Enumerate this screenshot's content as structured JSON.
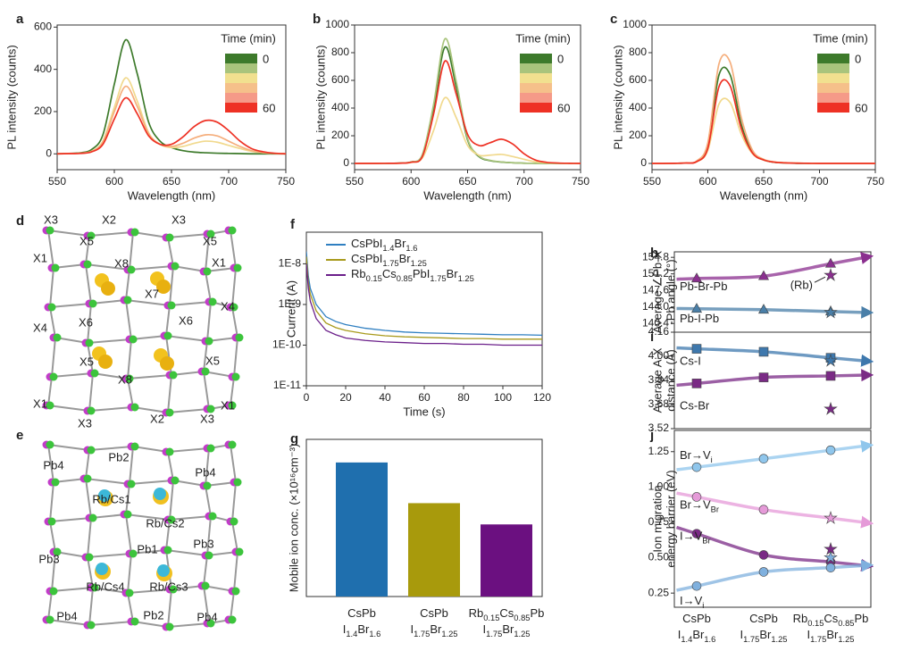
{
  "chart_data": [
    {
      "type": "line",
      "panel_label": "a",
      "xlabel": "Wavelength (nm)",
      "ylabel": "PL intensity (counts)",
      "xlim": [
        550,
        750
      ],
      "xticks": [
        550,
        600,
        650,
        700,
        750
      ],
      "ylim": [
        -75,
        610
      ],
      "yticks": [
        0,
        200,
        400,
        600
      ],
      "colorbar": {
        "title": "Time (min)",
        "colors": [
          "#3d7a2b",
          "#a9c47c",
          "#f1e08f",
          "#f5c08a",
          "#f59a88",
          "#ee3124"
        ],
        "labels": [
          "0",
          "60"
        ]
      },
      "x": [
        550,
        560,
        570,
        580,
        590,
        600,
        610,
        620,
        630,
        640,
        650,
        660,
        670,
        680,
        690,
        700,
        710,
        720,
        730,
        740,
        750
      ],
      "series": [
        {
          "color": "#3d7a2b",
          "values": [
            0,
            2,
            5,
            20,
            90,
            330,
            540,
            380,
            150,
            60,
            30,
            15,
            8,
            5,
            3,
            2,
            1,
            0,
            0,
            0,
            0
          ]
        },
        {
          "color": "#f1d98d",
          "values": [
            0,
            1,
            3,
            12,
            60,
            220,
            360,
            250,
            100,
            45,
            30,
            35,
            50,
            60,
            55,
            40,
            25,
            12,
            5,
            2,
            0
          ]
        },
        {
          "color": "#f5ae7c",
          "values": [
            0,
            1,
            3,
            11,
            55,
            200,
            320,
            225,
            95,
            45,
            35,
            50,
            75,
            90,
            85,
            60,
            35,
            15,
            6,
            2,
            0
          ]
        },
        {
          "color": "#ee3124",
          "values": [
            0,
            1,
            2,
            9,
            45,
            165,
            265,
            190,
            85,
            45,
            45,
            80,
            130,
            158,
            150,
            110,
            60,
            25,
            10,
            3,
            0
          ]
        }
      ]
    },
    {
      "type": "line",
      "panel_label": "b",
      "xlabel": "Wavelength (nm)",
      "ylabel": "PL intensity (counts)",
      "xlim": [
        550,
        750
      ],
      "xticks": [
        550,
        600,
        650,
        700,
        750
      ],
      "ylim": [
        -45,
        1000
      ],
      "yticks": [
        0,
        200,
        400,
        600,
        800,
        1000
      ],
      "colorbar": {
        "title": "Time (min)",
        "colors": [
          "#3d7a2b",
          "#a9c47c",
          "#f1e08f",
          "#f5c08a",
          "#f59a88",
          "#ee3124"
        ],
        "labels": [
          "0",
          "60"
        ]
      },
      "x": [
        550,
        560,
        570,
        580,
        590,
        600,
        610,
        620,
        630,
        640,
        650,
        660,
        670,
        680,
        690,
        700,
        710,
        720,
        730,
        740,
        750
      ],
      "series": [
        {
          "color": "#3d7a2b",
          "values": [
            0,
            0,
            0,
            1,
            3,
            10,
            60,
            400,
            840,
            550,
            170,
            50,
            20,
            10,
            5,
            2,
            1,
            0,
            0,
            0,
            0
          ]
        },
        {
          "color": "#a9c47c",
          "values": [
            0,
            0,
            0,
            1,
            3,
            11,
            65,
            430,
            900,
            590,
            180,
            55,
            22,
            11,
            5,
            2,
            1,
            0,
            0,
            0,
            0
          ]
        },
        {
          "color": "#f1d98d",
          "values": [
            0,
            0,
            0,
            1,
            2,
            7,
            40,
            240,
            475,
            330,
            130,
            60,
            60,
            65,
            50,
            30,
            12,
            5,
            2,
            0,
            0
          ]
        },
        {
          "color": "#ee3124",
          "values": [
            0,
            0,
            0,
            1,
            2,
            9,
            50,
            360,
            740,
            500,
            210,
            130,
            150,
            175,
            140,
            70,
            25,
            8,
            3,
            1,
            0
          ]
        }
      ]
    },
    {
      "type": "line",
      "panel_label": "c",
      "xlabel": "Wavelength (nm)",
      "ylabel": "PL intensity (counts)",
      "xlim": [
        550,
        750
      ],
      "xticks": [
        550,
        600,
        650,
        700,
        750
      ],
      "ylim": [
        -45,
        1000
      ],
      "yticks": [
        0,
        200,
        400,
        600,
        800,
        1000
      ],
      "colorbar": {
        "title": "Time (min)",
        "colors": [
          "#3d7a2b",
          "#a9c47c",
          "#f1e08f",
          "#f5c08a",
          "#f59a88",
          "#ee3124"
        ],
        "labels": [
          "0",
          "60"
        ]
      },
      "x": [
        550,
        560,
        570,
        580,
        590,
        600,
        610,
        620,
        630,
        640,
        650,
        660,
        670,
        680,
        690,
        700,
        710,
        720,
        730,
        740,
        750
      ],
      "series": [
        {
          "color": "#3d7a2b",
          "values": [
            0,
            0,
            1,
            3,
            15,
            130,
            640,
            640,
            280,
            80,
            25,
            8,
            3,
            1,
            1,
            0,
            0,
            0,
            0,
            0,
            0
          ]
        },
        {
          "color": "#f5ae7c",
          "values": [
            0,
            0,
            1,
            4,
            18,
            150,
            720,
            730,
            330,
            95,
            30,
            10,
            4,
            2,
            1,
            0,
            0,
            0,
            0,
            0,
            0
          ]
        },
        {
          "color": "#f1d98d",
          "values": [
            0,
            0,
            1,
            3,
            12,
            95,
            430,
            440,
            210,
            70,
            25,
            10,
            5,
            3,
            1,
            0,
            0,
            0,
            0,
            0,
            0
          ]
        },
        {
          "color": "#ee3124",
          "values": [
            0,
            0,
            1,
            3,
            13,
            110,
            555,
            560,
            250,
            75,
            25,
            9,
            4,
            2,
            1,
            0,
            0,
            0,
            0,
            0,
            0
          ]
        }
      ]
    },
    {
      "type": "line",
      "panel_label": "f",
      "xlabel": "Time (s)",
      "ylabel": "Current (A)",
      "log_y": true,
      "xlim": [
        0,
        120
      ],
      "xticks": [
        0,
        20,
        40,
        60,
        80,
        100,
        120
      ],
      "ylim": [
        1e-11,
        6e-08
      ],
      "yticks": [
        {
          "value": 1e-08,
          "label": "1E-8"
        },
        {
          "value": 1e-09,
          "label": "1E-9"
        },
        {
          "value": 1e-10,
          "label": "1E-10"
        },
        {
          "value": 1e-11,
          "label": "1E-11"
        }
      ],
      "x": [
        0,
        1,
        2,
        5,
        10,
        15,
        20,
        30,
        40,
        50,
        60,
        70,
        80,
        90,
        100,
        110,
        120
      ],
      "series": [
        {
          "name": "CsPbI1.4Br1.6",
          "color": "#2f7fc1",
          "values": [
            2e-08,
            5e-09,
            2.5e-09,
            1e-09,
            5e-10,
            3.8e-10,
            3.2e-10,
            2.6e-10,
            2.3e-10,
            2.1e-10,
            2e-10,
            1.95e-10,
            1.9e-10,
            1.85e-10,
            1.8e-10,
            1.8e-10,
            1.75e-10
          ]
        },
        {
          "name": "CsPbI1.75Br1.25",
          "color": "#a89a1c",
          "values": [
            1.5e-08,
            3.5e-09,
            1.8e-09,
            7e-10,
            3.5e-10,
            2.7e-10,
            2.3e-10,
            1.9e-10,
            1.7e-10,
            1.6e-10,
            1.55e-10,
            1.5e-10,
            1.45e-10,
            1.45e-10,
            1.4e-10,
            1.4e-10,
            1.4e-10
          ]
        },
        {
          "name": "Rb0.15Cs0.85PbI1.75Br1.25",
          "color": "#6b1f8a",
          "values": [
            1e-08,
            2.5e-09,
            1.2e-09,
            4.5e-10,
            2.3e-10,
            1.8e-10,
            1.5e-10,
            1.3e-10,
            1.2e-10,
            1.15e-10,
            1.1e-10,
            1.1e-10,
            1.05e-10,
            1.05e-10,
            1e-10,
            1e-10,
            1e-10
          ]
        }
      ]
    },
    {
      "type": "bar",
      "panel_label": "g",
      "ylabel": "Mobile ion conc. (×10¹⁶cm⁻³)",
      "ylim": [
        0,
        17
      ],
      "categories": [
        [
          "CsPb",
          "I1.4Br1.6"
        ],
        [
          "CsPb",
          "I1.75Br1.25"
        ],
        [
          "Rb0.15Cs0.85Pb",
          "I1.75Br1.25"
        ]
      ],
      "values": [
        14.5,
        10.1,
        7.8
      ],
      "colors": [
        "#1f6fae",
        "#a89a0c",
        "#6b1080"
      ]
    },
    {
      "type": "scatter",
      "panel_label": "h",
      "ylabel": [
        "Average ∠Pb-X",
        "-Pb angle (°)"
      ],
      "ylim": [
        138.5,
        156
      ],
      "yticks": [
        140.4,
        {
          "value": 144,
          "label": "144.0"
        },
        147.6,
        151.2,
        154.8
      ],
      "annotation": "(Rb)",
      "series": [
        {
          "name": "Pb-Br-Pb",
          "color": "#8b2f8f",
          "marker": "triangle",
          "values": [
            150.2,
            150.7,
            153.4
          ],
          "stars": [
            null,
            null,
            150.9
          ]
        },
        {
          "name": "Pb-I-Pb",
          "color": "#4a7fa8",
          "marker": "triangle",
          "values": [
            143.6,
            143.4,
            143.0
          ],
          "stars": [
            null,
            null,
            142.8
          ]
        }
      ]
    },
    {
      "type": "scatter",
      "panel_label": "i",
      "ylabel": [
        "Average A-X",
        "distance (Å)"
      ],
      "ylim": [
        3.52,
        4.16
      ],
      "yticks": [
        3.52,
        3.68,
        3.84,
        {
          "value": 4,
          "label": "4.00"
        },
        4.16
      ],
      "series": [
        {
          "name": "Cs-I",
          "color": "#3e78ad",
          "marker": "square",
          "values": [
            4.05,
            4.03,
            3.99
          ],
          "stars": [
            null,
            null,
            3.97
          ]
        },
        {
          "name": "Cs-Br",
          "color": "#7a2a85",
          "marker": "square",
          "values": [
            3.82,
            3.86,
            3.87
          ],
          "stars": [
            null,
            null,
            3.65
          ]
        }
      ]
    },
    {
      "type": "scatter",
      "panel_label": "j",
      "ylabel": [
        "Ion migration",
        "energy barrier (eV)"
      ],
      "ylim": [
        0.15,
        1.4
      ],
      "yticks": [
        0.25,
        {
          "value": 0.5,
          "label": "0.50"
        },
        0.75,
        {
          "value": 1,
          "label": "1.00"
        },
        1.25
      ],
      "categories": [
        [
          "CsPb",
          "I1.4Br1.6"
        ],
        [
          "CsPb",
          "I1.75Br1.25"
        ],
        [
          "Rb0.15Cs0.85Pb",
          "I1.75Br1.25"
        ]
      ],
      "series": [
        {
          "name": "Br→Vi",
          "color": "#8fc6ec",
          "marker": "circle",
          "values": [
            1.14,
            1.2,
            1.26
          ],
          "stars": [
            null,
            null,
            null
          ]
        },
        {
          "name": "Br→VBr",
          "color": "#e59ad8",
          "marker": "circle",
          "values": [
            0.93,
            0.84,
            null
          ],
          "stars": [
            null,
            null,
            0.78
          ]
        },
        {
          "name": "I→VBr",
          "color": "#7a2a85",
          "marker": "circle",
          "values": [
            0.67,
            0.52,
            0.47
          ],
          "stars": [
            null,
            null,
            0.56
          ]
        },
        {
          "name": "I→Vi",
          "color": "#7fb0de",
          "marker": "circle",
          "values": [
            0.3,
            0.4,
            0.43
          ],
          "stars": [
            null,
            null,
            0.5
          ]
        }
      ]
    }
  ],
  "structures": [
    {
      "panel_label": "d",
      "labels": [
        "X3",
        "X2",
        "X3",
        "X5",
        "X5",
        "X1",
        "X1",
        "X8",
        "X7",
        "X4",
        "X6",
        "X4",
        "X6",
        "X5",
        "X5",
        "X8",
        "X1",
        "X1",
        "X3",
        "X2",
        "X3"
      ]
    },
    {
      "panel_label": "e",
      "labels": [
        "Pb4",
        "Pb2",
        "Pb4",
        "Rb/Cs1",
        "Rb/Cs2",
        "Pb3",
        "Pb1",
        "Pb3",
        "Rb/Cs4",
        "Rb/Cs3",
        "Pb2",
        "Pb4",
        "Pb4"
      ]
    }
  ]
}
